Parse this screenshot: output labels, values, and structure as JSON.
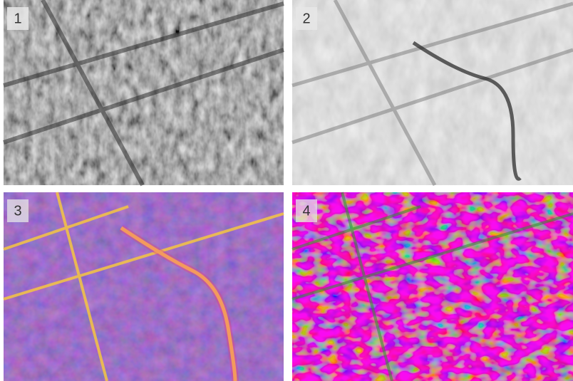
{
  "panels": [
    {
      "label": "1"
    },
    {
      "label": "2"
    },
    {
      "label": "3"
    },
    {
      "label": "4"
    }
  ]
}
